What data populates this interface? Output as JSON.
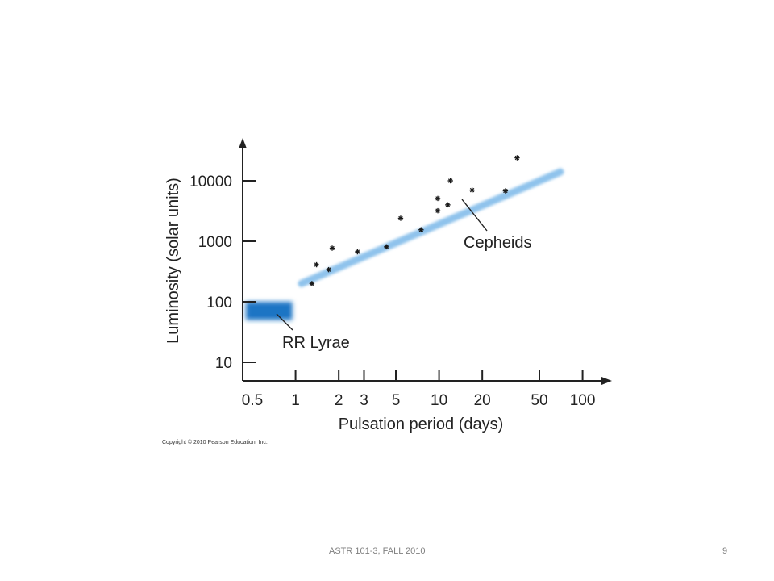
{
  "chart_data": {
    "type": "scatter",
    "x_scale": "log",
    "y_scale": "log",
    "xlabel": "Pulsation period (days)",
    "ylabel": "Luminosity (solar units)",
    "x_ticks": [
      0.5,
      1,
      2,
      3,
      5,
      10,
      20,
      50,
      100
    ],
    "x_tick_labels": [
      "0.5",
      "1",
      "2",
      "3",
      "5",
      "10",
      "20",
      "50",
      "100"
    ],
    "y_ticks": [
      10,
      100,
      1000,
      10000
    ],
    "y_tick_labels": [
      "10",
      "100",
      "1000",
      "10000"
    ],
    "cepheid_band": {
      "label": "Cepheids",
      "from": [
        1.1,
        200
      ],
      "to": [
        70,
        14000
      ],
      "color": "#8fc3ec"
    },
    "rr_lyrae_region": {
      "label": "RR Lyrae",
      "x_range": [
        0.45,
        0.95
      ],
      "y_range": [
        50,
        100
      ],
      "color": "#1f74c4"
    },
    "series": [
      {
        "name": "Cepheids",
        "points": [
          [
            1.3,
            200
          ],
          [
            1.4,
            410
          ],
          [
            1.7,
            340
          ],
          [
            1.8,
            770
          ],
          [
            2.7,
            670
          ],
          [
            4.3,
            810
          ],
          [
            5.4,
            2400
          ],
          [
            7.5,
            1550
          ],
          [
            9.8,
            3200
          ],
          [
            9.8,
            5100
          ],
          [
            11.5,
            4000
          ],
          [
            12.0,
            10000
          ],
          [
            17.0,
            7000
          ],
          [
            29.0,
            6800
          ],
          [
            35.0,
            24000
          ]
        ]
      }
    ]
  },
  "credit": "Copyright © 2010 Pearson Education, Inc.",
  "footer": {
    "course": "ASTR 101-3, FALL 2010",
    "page": "9"
  }
}
